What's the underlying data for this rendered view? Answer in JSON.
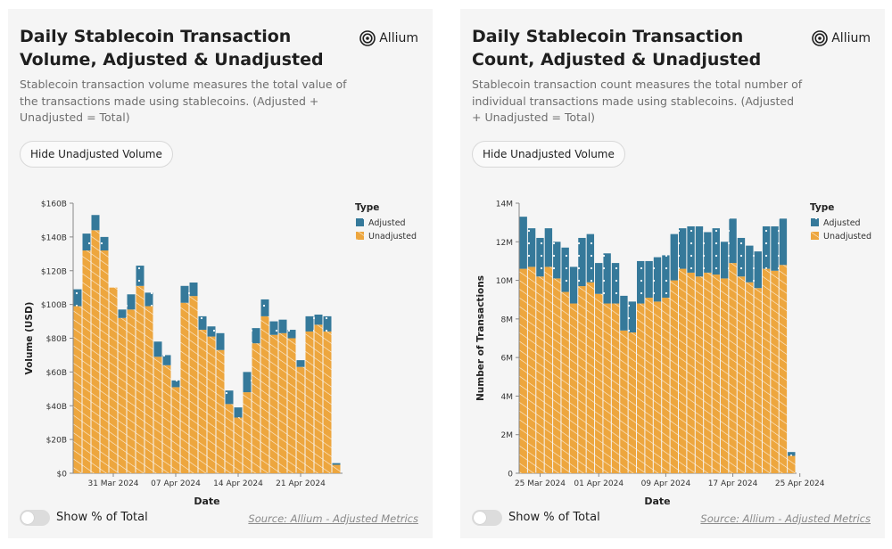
{
  "colors": {
    "adjusted": "#35799a",
    "unadjusted": "#eda63e",
    "pattern_line": "#ffffff"
  },
  "brand": {
    "name": "Allium",
    "icon": "allium-logo-icon"
  },
  "panels": [
    {
      "title": "Daily Stablecoin Transaction Volume, Adjusted & Unadjusted",
      "description": "Stablecoin transaction volume measures the total value of the transactions made using stablecoins. (Adjusted + Unadjusted = Total)",
      "button_label": "Hide Unadjusted Volume",
      "toggle_label": "Show % of Total",
      "toggle_on": false,
      "source_label": "Source: Allium - Adjusted Metrics"
    },
    {
      "title": "Daily Stablecoin Transaction Count, Adjusted & Unadjusted",
      "description": "Stablecoin transaction count measures the total number of individual transactions made using stablecoins. (Adjusted + Unadjusted = Total)",
      "button_label": "Hide Unadjusted Volume",
      "toggle_label": "Show % of Total",
      "toggle_on": false,
      "source_label": "Source: Allium - Adjusted Metrics"
    }
  ],
  "chart_data": [
    {
      "type": "bar",
      "stacked": true,
      "xlabel": "Date",
      "ylabel": "Volume (USD)",
      "ylim": [
        0,
        160
      ],
      "y_ticks": [
        0,
        20,
        40,
        60,
        80,
        100,
        120,
        140,
        160
      ],
      "y_tick_labels": [
        "$0",
        "$20B",
        "$40B",
        "$60B",
        "$80B",
        "$100B",
        "$120B",
        "$140B",
        "$160B"
      ],
      "x_tick_labels": [
        {
          "label": "31 Mar 2024",
          "index": 4
        },
        {
          "label": "07 Apr 2024",
          "index": 11
        },
        {
          "label": "14 Apr 2024",
          "index": 18
        },
        {
          "label": "21 Apr 2024",
          "index": 25
        }
      ],
      "legend_title": "Type",
      "legend": [
        "Adjusted",
        "Unadjusted"
      ],
      "legend_position": "top-right",
      "grid": false,
      "series": [
        {
          "name": "Unadjusted",
          "values": [
            99,
            132,
            144,
            132,
            110,
            92,
            97,
            111,
            99,
            69,
            64,
            51,
            101,
            105,
            85,
            81,
            73,
            41,
            33,
            48,
            77,
            93,
            82,
            83,
            80,
            63,
            84,
            88,
            84,
            5
          ]
        },
        {
          "name": "Adjusted",
          "values": [
            10,
            10,
            9,
            8,
            0,
            5,
            9,
            12,
            8,
            9,
            6,
            4,
            10,
            8,
            8,
            6,
            10,
            8,
            6,
            12,
            9,
            10,
            8,
            8,
            5,
            4,
            9,
            6,
            9,
            1
          ]
        }
      ]
    },
    {
      "type": "bar",
      "stacked": true,
      "xlabel": "Date",
      "ylabel": "Number of Transactions",
      "ylim": [
        0,
        14
      ],
      "y_ticks": [
        0,
        2,
        4,
        6,
        8,
        10,
        12,
        14
      ],
      "y_tick_labels": [
        "0",
        "2M",
        "4M",
        "6M",
        "8M",
        "10M",
        "12M",
        "14M"
      ],
      "x_tick_labels": [
        {
          "label": "25 Mar 2024",
          "index": 2
        },
        {
          "label": "01 Apr 2024",
          "index": 9
        },
        {
          "label": "09 Apr 2024",
          "index": 17
        },
        {
          "label": "17 Apr 2024",
          "index": 25
        },
        {
          "label": "25 Apr 2024",
          "index": 33
        }
      ],
      "legend_title": "Type",
      "legend": [
        "Adjusted",
        "Unadjusted"
      ],
      "legend_position": "top-right",
      "grid": false,
      "series": [
        {
          "name": "Unadjusted",
          "values": [
            10.6,
            10.7,
            10.2,
            10.7,
            10.1,
            9.4,
            8.8,
            9.7,
            9.9,
            9.3,
            8.8,
            8.8,
            7.4,
            7.3,
            8.8,
            9.1,
            8.9,
            9.1,
            10.0,
            10.6,
            10.4,
            10.2,
            10.4,
            10.3,
            10.1,
            10.9,
            10.2,
            9.9,
            9.6,
            10.6,
            10.5,
            10.8,
            0.9
          ],
          "note_ignore": ""
        },
        {
          "name": "Adjusted",
          "values": [
            2.7,
            2.0,
            2.0,
            2.0,
            1.9,
            2.3,
            1.9,
            2.5,
            2.5,
            1.6,
            2.6,
            2.1,
            1.8,
            1.6,
            2.2,
            1.9,
            2.3,
            2.2,
            2.4,
            2.1,
            2.4,
            2.6,
            2.1,
            2.4,
            1.9,
            2.3,
            2.0,
            1.9,
            1.9,
            2.2,
            2.3,
            2.4,
            0.2
          ]
        }
      ]
    }
  ]
}
